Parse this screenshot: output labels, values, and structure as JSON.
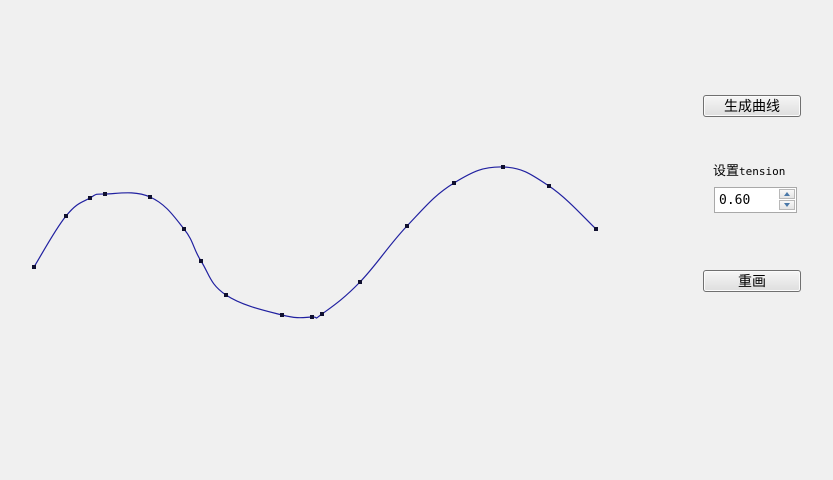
{
  "controls": {
    "generate_label": "生成曲线",
    "tension_label_cn": "设置",
    "tension_label_en": "tension",
    "tension_value": "0.60",
    "redraw_label": "重画"
  },
  "colors": {
    "curve": "#2020a0",
    "points": "#101030",
    "background": "#f0f0f0"
  },
  "curve": {
    "tension": 0.6,
    "control_points": [
      [
        34,
        267
      ],
      [
        66,
        216
      ],
      [
        90,
        198
      ],
      [
        105,
        194
      ],
      [
        150,
        197
      ],
      [
        184,
        229
      ],
      [
        201,
        261
      ],
      [
        226,
        295
      ],
      [
        282,
        315
      ],
      [
        312,
        317
      ],
      [
        322,
        314
      ],
      [
        360,
        282
      ],
      [
        407,
        226
      ],
      [
        454,
        183
      ],
      [
        503,
        167
      ],
      [
        549,
        186
      ],
      [
        596,
        229
      ]
    ]
  }
}
